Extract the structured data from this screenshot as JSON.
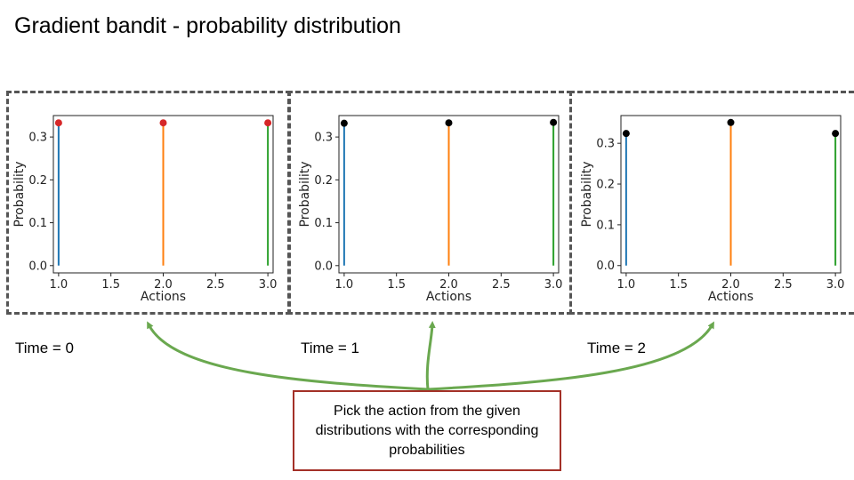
{
  "title": "Gradient bandit - probability distribution",
  "colors": {
    "frame": "#555555",
    "arrow": "#6aa84f",
    "callout_border": "#a33027",
    "series": [
      "#1f77b4",
      "#ff7f0e",
      "#2ca02c"
    ]
  },
  "chart_data": [
    {
      "type": "scatter",
      "subtype": "stem",
      "x": [
        1.0,
        2.0,
        3.0
      ],
      "y": [
        0.333,
        0.333,
        0.333
      ],
      "marker_color": "#d62728",
      "xlabel": "Actions",
      "ylabel": "Probability",
      "xlim": [
        0.95,
        3.05
      ],
      "ylim": [
        -0.017,
        0.35
      ],
      "xticks": [
        "1.0",
        "1.5",
        "2.0",
        "2.5",
        "3.0"
      ],
      "yticks": [
        "0.0",
        "0.1",
        "0.2",
        "0.3"
      ]
    },
    {
      "type": "scatter",
      "subtype": "stem",
      "x": [
        1.0,
        2.0,
        3.0
      ],
      "y": [
        0.332,
        0.333,
        0.334
      ],
      "marker_color": "#000000",
      "xlabel": "Actions",
      "ylabel": "Probability",
      "xlim": [
        0.95,
        3.05
      ],
      "ylim": [
        -0.017,
        0.35
      ],
      "xticks": [
        "1.0",
        "1.5",
        "2.0",
        "2.5",
        "3.0"
      ],
      "yticks": [
        "0.0",
        "0.1",
        "0.2",
        "0.3"
      ]
    },
    {
      "type": "scatter",
      "subtype": "stem",
      "x": [
        1.0,
        2.0,
        3.0
      ],
      "y": [
        0.324,
        0.351,
        0.324
      ],
      "marker_color": "#000000",
      "xlabel": "Actions",
      "ylabel": "Probability",
      "xlim": [
        0.95,
        3.05
      ],
      "ylim": [
        -0.018,
        0.368
      ],
      "xticks": [
        "1.0",
        "1.5",
        "2.0",
        "2.5",
        "3.0"
      ],
      "yticks": [
        "0.0",
        "0.1",
        "0.2",
        "0.3"
      ]
    }
  ],
  "time_labels": [
    "Time = 0",
    "Time = 1",
    "Time = 2"
  ],
  "callout": {
    "text": "Pick the action from the given distributions with the corresponding probabilities"
  }
}
